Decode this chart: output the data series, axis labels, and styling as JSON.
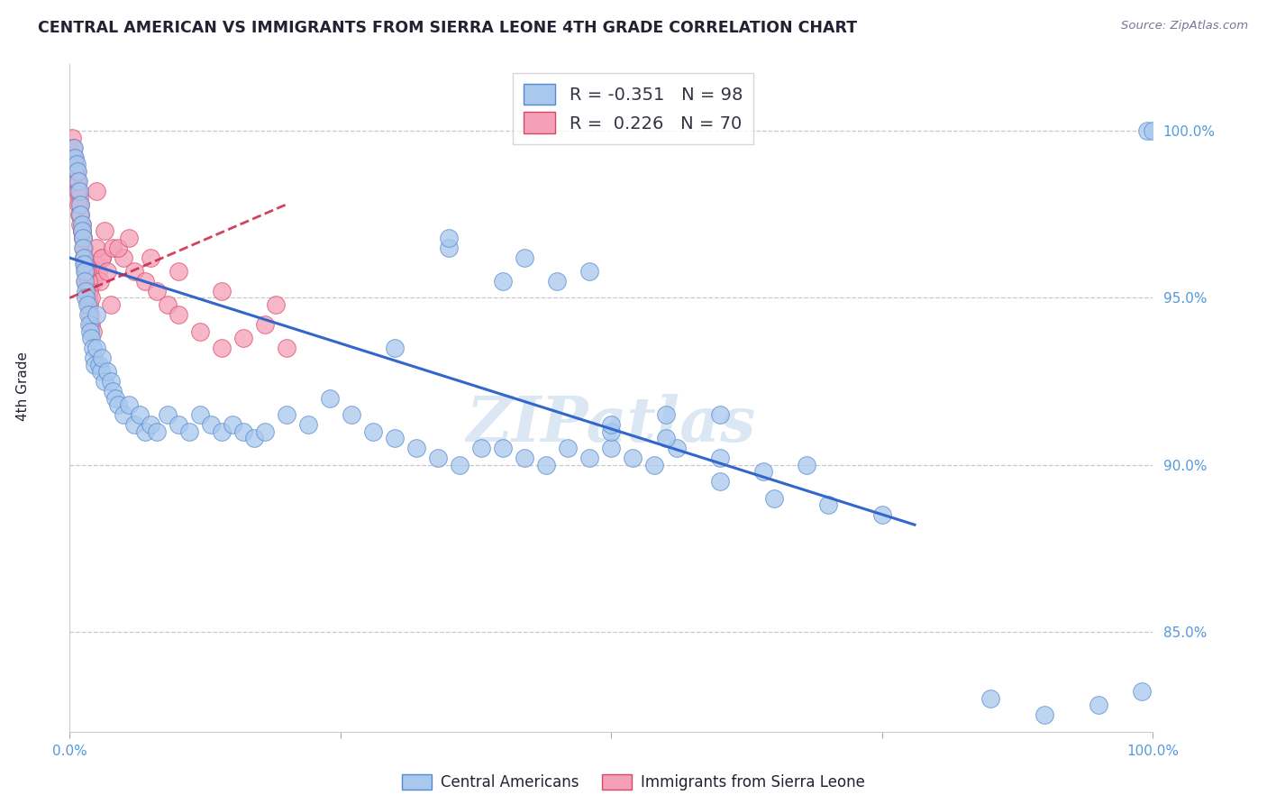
{
  "title": "CENTRAL AMERICAN VS IMMIGRANTS FROM SIERRA LEONE 4TH GRADE CORRELATION CHART",
  "source": "Source: ZipAtlas.com",
  "ylabel": "4th Grade",
  "y_ticks": [
    85.0,
    90.0,
    95.0,
    100.0
  ],
  "y_tick_labels": [
    "85.0%",
    "90.0%",
    "95.0%",
    "100.0%"
  ],
  "x_range": [
    0.0,
    100.0
  ],
  "y_range": [
    82.0,
    102.0
  ],
  "blue_R": -0.351,
  "blue_N": 98,
  "pink_R": 0.226,
  "pink_N": 70,
  "blue_color": "#A8C8EE",
  "pink_color": "#F4A0B8",
  "blue_edge_color": "#5588CC",
  "pink_edge_color": "#DD4466",
  "blue_line_color": "#3366CC",
  "pink_line_color": "#CC2244",
  "blue_label": "Central Americans",
  "pink_label": "Immigrants from Sierra Leone",
  "watermark": "ZIPatlas",
  "watermark_color": "#99BBDD",
  "background_color": "#FFFFFF",
  "grid_color": "#BBBBBB",
  "tick_label_color": "#5599DD",
  "title_color": "#222233",
  "source_color": "#777799",
  "blue_line_x": [
    0.0,
    78.0
  ],
  "blue_line_y": [
    96.2,
    88.2
  ],
  "pink_line_x": [
    0.0,
    20.0
  ],
  "pink_line_y": [
    95.0,
    97.8
  ],
  "blue_x": [
    0.4,
    0.5,
    0.6,
    0.7,
    0.8,
    0.9,
    1.0,
    1.0,
    1.1,
    1.1,
    1.2,
    1.2,
    1.3,
    1.3,
    1.4,
    1.4,
    1.5,
    1.5,
    1.6,
    1.7,
    1.8,
    1.9,
    2.0,
    2.1,
    2.2,
    2.3,
    2.5,
    2.5,
    2.7,
    2.9,
    3.0,
    3.2,
    3.5,
    3.8,
    4.0,
    4.2,
    4.5,
    5.0,
    5.5,
    6.0,
    6.5,
    7.0,
    7.5,
    8.0,
    9.0,
    10.0,
    11.0,
    12.0,
    13.0,
    14.0,
    15.0,
    16.0,
    17.0,
    18.0,
    20.0,
    22.0,
    24.0,
    26.0,
    28.0,
    30.0,
    32.0,
    34.0,
    36.0,
    38.0,
    40.0,
    42.0,
    44.0,
    46.0,
    48.0,
    50.0,
    52.0,
    54.0,
    56.0,
    60.0,
    64.0,
    68.0,
    30.0,
    35.0,
    40.0,
    50.0,
    60.0,
    75.0,
    85.0,
    90.0,
    95.0,
    99.0,
    99.5,
    100.0,
    45.0,
    50.0,
    55.0,
    60.0,
    65.0,
    70.0,
    35.0,
    42.0,
    48.0,
    55.0
  ],
  "blue_y": [
    99.5,
    99.2,
    99.0,
    98.8,
    98.5,
    98.2,
    97.8,
    97.5,
    97.2,
    97.0,
    96.8,
    96.5,
    96.2,
    96.0,
    95.8,
    95.5,
    95.2,
    95.0,
    94.8,
    94.5,
    94.2,
    94.0,
    93.8,
    93.5,
    93.2,
    93.0,
    94.5,
    93.5,
    93.0,
    92.8,
    93.2,
    92.5,
    92.8,
    92.5,
    92.2,
    92.0,
    91.8,
    91.5,
    91.8,
    91.2,
    91.5,
    91.0,
    91.2,
    91.0,
    91.5,
    91.2,
    91.0,
    91.5,
    91.2,
    91.0,
    91.2,
    91.0,
    90.8,
    91.0,
    91.5,
    91.2,
    92.0,
    91.5,
    91.0,
    90.8,
    90.5,
    90.2,
    90.0,
    90.5,
    90.5,
    90.2,
    90.0,
    90.5,
    90.2,
    90.5,
    90.2,
    90.0,
    90.5,
    90.2,
    89.8,
    90.0,
    93.5,
    96.5,
    95.5,
    91.0,
    91.5,
    88.5,
    83.0,
    82.5,
    82.8,
    83.2,
    100.0,
    100.0,
    95.5,
    91.2,
    90.8,
    89.5,
    89.0,
    88.8,
    96.8,
    96.2,
    95.8,
    91.5
  ],
  "pink_x": [
    0.2,
    0.3,
    0.4,
    0.5,
    0.6,
    0.7,
    0.8,
    0.9,
    1.0,
    1.0,
    1.1,
    1.1,
    1.2,
    1.3,
    1.3,
    1.4,
    1.5,
    1.5,
    1.6,
    1.7,
    1.8,
    1.9,
    2.0,
    2.1,
    2.2,
    2.4,
    2.6,
    2.8,
    3.0,
    0.5,
    0.6,
    0.7,
    0.8,
    0.9,
    1.0,
    1.1,
    1.2,
    1.3,
    1.4,
    1.5,
    1.6,
    1.7,
    1.8,
    2.0,
    2.5,
    3.0,
    3.5,
    4.0,
    5.0,
    6.0,
    7.0,
    8.0,
    9.0,
    10.0,
    12.0,
    14.0,
    16.0,
    18.0,
    20.0,
    3.8,
    2.5,
    1.5,
    4.5,
    3.2,
    5.5,
    7.5,
    10.0,
    14.0,
    19.0,
    0.4
  ],
  "pink_y": [
    99.8,
    99.5,
    99.2,
    99.0,
    98.8,
    98.5,
    98.2,
    98.0,
    97.8,
    97.5,
    97.2,
    97.0,
    96.8,
    96.5,
    96.2,
    96.0,
    95.8,
    95.5,
    95.2,
    95.0,
    94.8,
    94.5,
    94.2,
    94.0,
    95.5,
    96.0,
    95.8,
    95.5,
    96.2,
    98.8,
    98.5,
    98.2,
    97.8,
    97.5,
    97.2,
    97.0,
    96.8,
    96.5,
    96.2,
    96.0,
    95.8,
    95.5,
    95.2,
    95.0,
    96.5,
    96.2,
    95.8,
    96.5,
    96.2,
    95.8,
    95.5,
    95.2,
    94.8,
    94.5,
    94.0,
    93.5,
    93.8,
    94.2,
    93.5,
    94.8,
    98.2,
    95.8,
    96.5,
    97.0,
    96.8,
    96.2,
    95.8,
    95.2,
    94.8,
    99.2
  ]
}
